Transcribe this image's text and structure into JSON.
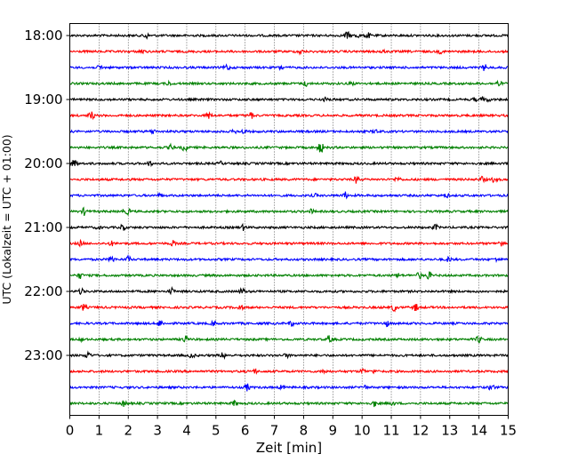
{
  "chart_data": {
    "type": "line",
    "xlabel": "Zeit  [min]",
    "ylabel": "UTC (Lokalzeit = UTC + 01:00)",
    "xlim": [
      0,
      15
    ],
    "x_ticks": [
      0,
      1,
      2,
      3,
      4,
      5,
      6,
      7,
      8,
      9,
      10,
      11,
      12,
      13,
      14,
      15
    ],
    "x_tick_labels": [
      "0",
      "1",
      "2",
      "3",
      "4",
      "5",
      "6",
      "7",
      "8",
      "9",
      "10",
      "11",
      "12",
      "13",
      "14",
      "15"
    ],
    "y_tick_labels": [
      "18:00",
      "19:00",
      "20:00",
      "21:00",
      "22:00",
      "23:00"
    ],
    "grid": "vertical dotted at each minute",
    "trace_interval_min": 15,
    "start_time": "18:00",
    "trace_count": 24,
    "trace_colors": [
      "#000000",
      "#ff0000",
      "#0000ff",
      "#008000"
    ],
    "series_description": "seismogram traces, 15 minutes per row, colors cycle black/red/blue/green"
  }
}
